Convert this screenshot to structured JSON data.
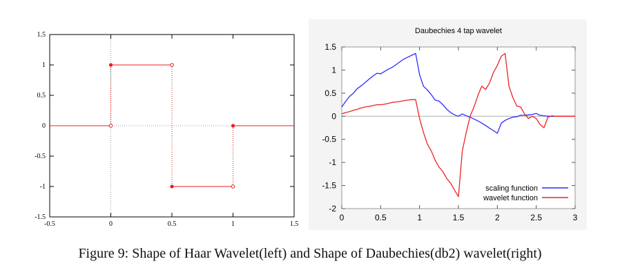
{
  "caption": "Figure 9: Shape of Haar Wavelet(left) and Shape of Daubechies(db2) wavelet(right)",
  "chart_data": [
    {
      "type": "line",
      "title": "",
      "xlabel": "",
      "ylabel": "",
      "xlim": [
        -0.5,
        1.5
      ],
      "ylim": [
        -1.5,
        1.5
      ],
      "xticks": [
        "-0.5",
        "0",
        "0.5",
        "1",
        "1.5"
      ],
      "yticks": [
        "-1.5",
        "-1",
        "-0.5",
        "0",
        "0.5",
        "1",
        "1.5"
      ],
      "grid": false,
      "zero_line": true,
      "color": "#ee1c1c",
      "segments": [
        {
          "x": [
            -0.5,
            0
          ],
          "y": [
            0,
            0
          ]
        },
        {
          "x": [
            0,
            0.5
          ],
          "y": [
            1,
            1
          ]
        },
        {
          "x": [
            0.5,
            1
          ],
          "y": [
            -1,
            -1
          ]
        },
        {
          "x": [
            1,
            1.5
          ],
          "y": [
            0,
            0
          ]
        }
      ],
      "dotted_jumps": [
        {
          "x": 0,
          "y": [
            0,
            1
          ]
        },
        {
          "x": 0.5,
          "y": [
            1,
            -1
          ]
        },
        {
          "x": 1,
          "y": [
            -1,
            0
          ]
        }
      ],
      "filled_points": [
        [
          0,
          1
        ],
        [
          0.5,
          -1
        ],
        [
          1,
          0
        ]
      ],
      "open_points": [
        [
          0,
          0
        ],
        [
          0.5,
          1
        ],
        [
          1,
          -1
        ]
      ]
    },
    {
      "type": "line",
      "title": "Daubechies 4 tap wavelet",
      "xlabel": "",
      "ylabel": "",
      "xlim": [
        0,
        3
      ],
      "ylim": [
        -2,
        1.5
      ],
      "xticks": [
        "0",
        "0.5",
        "1",
        "1.5",
        "2",
        "2.5",
        "3"
      ],
      "yticks": [
        "-2",
        "-1.5",
        "-1",
        "-0.5",
        "0",
        "0.5",
        "1",
        "1.5"
      ],
      "grid": false,
      "legend": "bottom-right",
      "series": [
        {
          "name": "scaling function",
          "color": "#2b2bff",
          "x": [
            0,
            0.05,
            0.1,
            0.15,
            0.2,
            0.25,
            0.3,
            0.35,
            0.4,
            0.45,
            0.5,
            0.55,
            0.6,
            0.65,
            0.7,
            0.75,
            0.8,
            0.85,
            0.9,
            0.95,
            1.0,
            1.05,
            1.1,
            1.15,
            1.2,
            1.25,
            1.3,
            1.35,
            1.4,
            1.45,
            1.5,
            1.55,
            1.6,
            1.65,
            1.7,
            1.75,
            1.8,
            1.85,
            1.9,
            1.95,
            2.0,
            2.05,
            2.1,
            2.15,
            2.2,
            2.25,
            2.3,
            2.35,
            2.4,
            2.45,
            2.5,
            2.55,
            2.6,
            2.65,
            2.7,
            2.75,
            2.8,
            2.85,
            2.9,
            2.95,
            3.0
          ],
          "y": [
            0.2,
            0.32,
            0.43,
            0.5,
            0.6,
            0.66,
            0.73,
            0.8,
            0.87,
            0.93,
            0.92,
            0.97,
            1.02,
            1.06,
            1.12,
            1.18,
            1.24,
            1.28,
            1.32,
            1.36,
            0.9,
            0.65,
            0.57,
            0.47,
            0.35,
            0.33,
            0.25,
            0.15,
            0.08,
            0.03,
            0.0,
            0.05,
            0.01,
            -0.02,
            -0.06,
            -0.1,
            -0.15,
            -0.2,
            -0.26,
            -0.31,
            -0.37,
            -0.15,
            -0.09,
            -0.05,
            -0.02,
            -0.01,
            0.02,
            0.02,
            0.03,
            0.04,
            0.06,
            0.02,
            0.01,
            0.0,
            0.0,
            0.0,
            0.0,
            0.0,
            0.0,
            0.0,
            0.0
          ]
        },
        {
          "name": "wavelet function",
          "color": "#ee2222",
          "x": [
            0,
            0.05,
            0.1,
            0.15,
            0.2,
            0.25,
            0.3,
            0.35,
            0.4,
            0.45,
            0.5,
            0.55,
            0.6,
            0.65,
            0.7,
            0.75,
            0.8,
            0.85,
            0.9,
            0.95,
            1.0,
            1.05,
            1.1,
            1.15,
            1.2,
            1.25,
            1.3,
            1.35,
            1.4,
            1.45,
            1.5,
            1.55,
            1.6,
            1.65,
            1.7,
            1.75,
            1.8,
            1.85,
            1.9,
            1.95,
            2.0,
            2.05,
            2.1,
            2.15,
            2.2,
            2.25,
            2.3,
            2.35,
            2.4,
            2.45,
            2.5,
            2.55,
            2.6,
            2.65,
            2.7,
            2.75,
            2.8,
            2.85,
            2.9,
            2.95,
            3.0
          ],
          "y": [
            0.05,
            0.08,
            0.1,
            0.13,
            0.15,
            0.18,
            0.2,
            0.21,
            0.23,
            0.25,
            0.25,
            0.26,
            0.28,
            0.3,
            0.31,
            0.32,
            0.34,
            0.35,
            0.36,
            0.36,
            -0.05,
            -0.35,
            -0.6,
            -0.75,
            -0.95,
            -1.1,
            -1.2,
            -1.35,
            -1.45,
            -1.6,
            -1.74,
            -0.75,
            -0.35,
            0.0,
            0.2,
            0.45,
            0.65,
            0.58,
            0.72,
            0.95,
            1.1,
            1.3,
            1.36,
            0.65,
            0.4,
            0.22,
            0.2,
            0.05,
            -0.05,
            0.0,
            -0.05,
            -0.18,
            -0.25,
            -0.02,
            0.01,
            0.0,
            0.0,
            0.0,
            0.0,
            0.0,
            0.0
          ]
        }
      ]
    }
  ]
}
